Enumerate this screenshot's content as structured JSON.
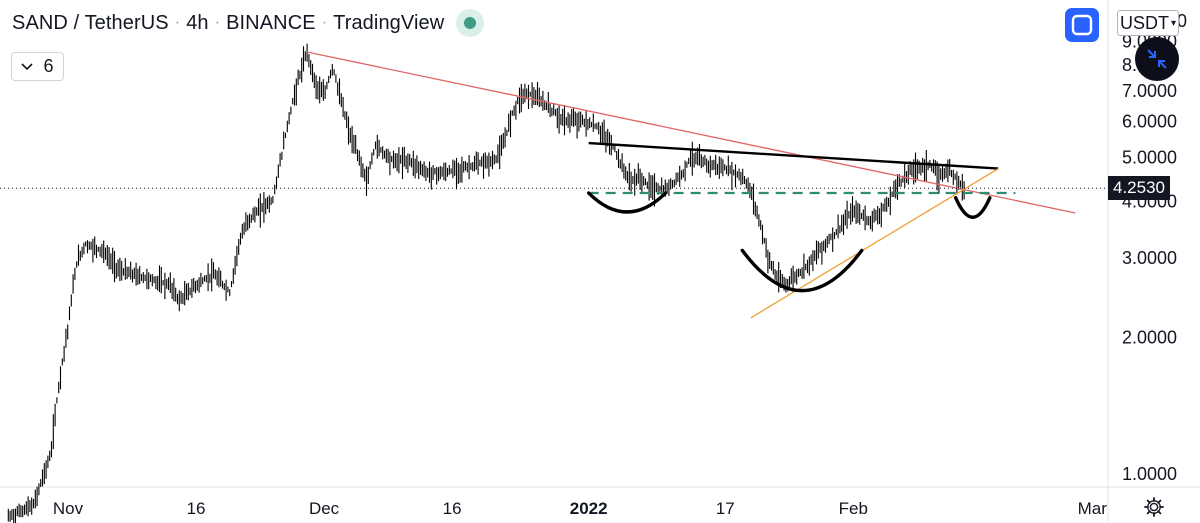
{
  "header": {
    "symbol": "SAND / TetherUS",
    "interval": "4h",
    "exchange": "BINANCE",
    "source": "TradingView"
  },
  "indicator_toggle": {
    "count": "6"
  },
  "currency_selector": {
    "value": "USDT"
  },
  "colors": {
    "candle": "#000000",
    "red_trendline": "#e06666",
    "orange_trendline": "#f0a030",
    "neckline": "#000000",
    "dashed_support": "#2e8b74",
    "accent": "#2962ff"
  },
  "chart_data": {
    "type": "candlestick",
    "title": "",
    "xlabel": "",
    "ylabel": "",
    "ylim": [
      0.8,
      10.0
    ],
    "y_scale": "log",
    "xlim": [
      "2021-10-25",
      "2022-03-07"
    ],
    "yticks": [
      {
        "value": 10.0,
        "label": "10.0000"
      },
      {
        "value": 9.0,
        "label": "9.0000"
      },
      {
        "value": 8.0,
        "label": "8.0000"
      },
      {
        "value": 7.0,
        "label": "7.0000"
      },
      {
        "value": 6.0,
        "label": "6.0000"
      },
      {
        "value": 5.0,
        "label": "5.0000"
      },
      {
        "value": 4.0,
        "label": "4.0000"
      },
      {
        "value": 3.0,
        "label": "3.0000"
      },
      {
        "value": 2.0,
        "label": "2.0000"
      },
      {
        "value": 1.0,
        "label": "1.0000"
      }
    ],
    "xticks": [
      {
        "date": "2021-11-01",
        "label": "Nov",
        "bold": false
      },
      {
        "date": "2021-11-16",
        "label": "16",
        "bold": false
      },
      {
        "date": "2021-12-01",
        "label": "Dec",
        "bold": false
      },
      {
        "date": "2021-12-16",
        "label": "16",
        "bold": false
      },
      {
        "date": "2022-01-01",
        "label": "2022",
        "bold": true
      },
      {
        "date": "2022-01-17",
        "label": "17",
        "bold": false
      },
      {
        "date": "2022-02-01",
        "label": "Feb",
        "bold": false
      },
      {
        "date": "2022-03-01",
        "label": "Mar",
        "bold": false
      }
    ],
    "last_price": {
      "value": 4.253,
      "label": "4.2530"
    },
    "price_path": [
      [
        "2021-10-25",
        0.8
      ],
      [
        "2021-10-28",
        0.85
      ],
      [
        "2021-10-30",
        1.1
      ],
      [
        "2021-10-31",
        1.6
      ],
      [
        "2021-11-01",
        2.1
      ],
      [
        "2021-11-02",
        2.9
      ],
      [
        "2021-11-03",
        3.2
      ],
      [
        "2021-11-05",
        3.1
      ],
      [
        "2021-11-07",
        2.8
      ],
      [
        "2021-11-10",
        2.7
      ],
      [
        "2021-11-13",
        2.6
      ],
      [
        "2021-11-14",
        2.4
      ],
      [
        "2021-11-16",
        2.6
      ],
      [
        "2021-11-18",
        2.75
      ],
      [
        "2021-11-20",
        2.5
      ],
      [
        "2021-11-21",
        3.2
      ],
      [
        "2021-11-22",
        3.6
      ],
      [
        "2021-11-24",
        3.9
      ],
      [
        "2021-11-25",
        4.0
      ],
      [
        "2021-11-26",
        5.0
      ],
      [
        "2021-11-27",
        6.2
      ],
      [
        "2021-11-28",
        7.4
      ],
      [
        "2021-11-29",
        8.5
      ],
      [
        "2021-11-30",
        7.2
      ],
      [
        "2021-12-01",
        6.8
      ],
      [
        "2021-12-02",
        7.9
      ],
      [
        "2021-12-03",
        6.6
      ],
      [
        "2021-12-04",
        5.6
      ],
      [
        "2021-12-05",
        5.0
      ],
      [
        "2021-12-06",
        4.4
      ],
      [
        "2021-12-07",
        5.3
      ],
      [
        "2021-12-09",
        4.9
      ],
      [
        "2021-12-11",
        4.9
      ],
      [
        "2021-12-13",
        4.6
      ],
      [
        "2021-12-15",
        4.6
      ],
      [
        "2021-12-17",
        4.7
      ],
      [
        "2021-12-19",
        4.8
      ],
      [
        "2021-12-21",
        4.9
      ],
      [
        "2021-12-22",
        5.3
      ],
      [
        "2021-12-23",
        6.2
      ],
      [
        "2021-12-24",
        6.8
      ],
      [
        "2021-12-25",
        6.9
      ],
      [
        "2021-12-27",
        6.5
      ],
      [
        "2021-12-29",
        6.0
      ],
      [
        "2021-12-31",
        6.0
      ],
      [
        "2022-01-02",
        5.8
      ],
      [
        "2022-01-03",
        5.5
      ],
      [
        "2022-01-04",
        5.2
      ],
      [
        "2022-01-05",
        4.7
      ],
      [
        "2022-01-06",
        4.4
      ],
      [
        "2022-01-07",
        4.5
      ],
      [
        "2022-01-08",
        4.3
      ],
      [
        "2022-01-10",
        4.2
      ],
      [
        "2022-01-12",
        4.6
      ],
      [
        "2022-01-13",
        5.0
      ],
      [
        "2022-01-15",
        4.8
      ],
      [
        "2022-01-17",
        4.7
      ],
      [
        "2022-01-19",
        4.5
      ],
      [
        "2022-01-20",
        4.2
      ],
      [
        "2022-01-21",
        3.6
      ],
      [
        "2022-01-22",
        3.0
      ],
      [
        "2022-01-23",
        2.7
      ],
      [
        "2022-01-24",
        2.6
      ],
      [
        "2022-01-26",
        2.8
      ],
      [
        "2022-01-28",
        3.1
      ],
      [
        "2022-01-30",
        3.4
      ],
      [
        "2022-02-01",
        3.8
      ],
      [
        "2022-02-03",
        3.6
      ],
      [
        "2022-02-05",
        3.9
      ],
      [
        "2022-02-06",
        4.3
      ],
      [
        "2022-02-08",
        4.7
      ],
      [
        "2022-02-10",
        4.8
      ],
      [
        "2022-02-11",
        4.5
      ],
      [
        "2022-02-12",
        4.7
      ],
      [
        "2022-02-13",
        4.5
      ],
      [
        "2022-02-14",
        4.25
      ]
    ],
    "annotations": [
      {
        "kind": "trendline",
        "name": "descending resistance",
        "color": "red",
        "points": [
          [
            "2021-11-29",
            8.5
          ],
          [
            "2022-02-27",
            3.75
          ]
        ]
      },
      {
        "kind": "trendline",
        "name": "neckline",
        "color": "black",
        "points": [
          [
            "2022-01-01",
            5.35
          ],
          [
            "2022-02-18",
            4.7
          ]
        ]
      },
      {
        "kind": "trendline",
        "name": "rising support",
        "color": "orange",
        "points": [
          [
            "2022-01-20",
            2.2
          ],
          [
            "2022-02-18",
            4.7
          ]
        ]
      },
      {
        "kind": "dashed-hline",
        "name": "support level",
        "color": "green",
        "value": 4.15,
        "x_range": [
          "2022-01-01",
          "2022-02-20"
        ]
      },
      {
        "kind": "arc",
        "name": "left shoulder",
        "x_range": [
          "2022-01-01",
          "2022-01-10"
        ],
        "value_range": [
          3.75,
          4.15
        ]
      },
      {
        "kind": "arc",
        "name": "head",
        "x_range": [
          "2022-01-19",
          "2022-02-02"
        ],
        "value_range": [
          2.5,
          3.1
        ]
      },
      {
        "kind": "arc",
        "name": "right shoulder",
        "x_range": [
          "2022-02-13",
          "2022-02-17"
        ],
        "value_range": [
          3.65,
          4.05
        ]
      }
    ]
  }
}
